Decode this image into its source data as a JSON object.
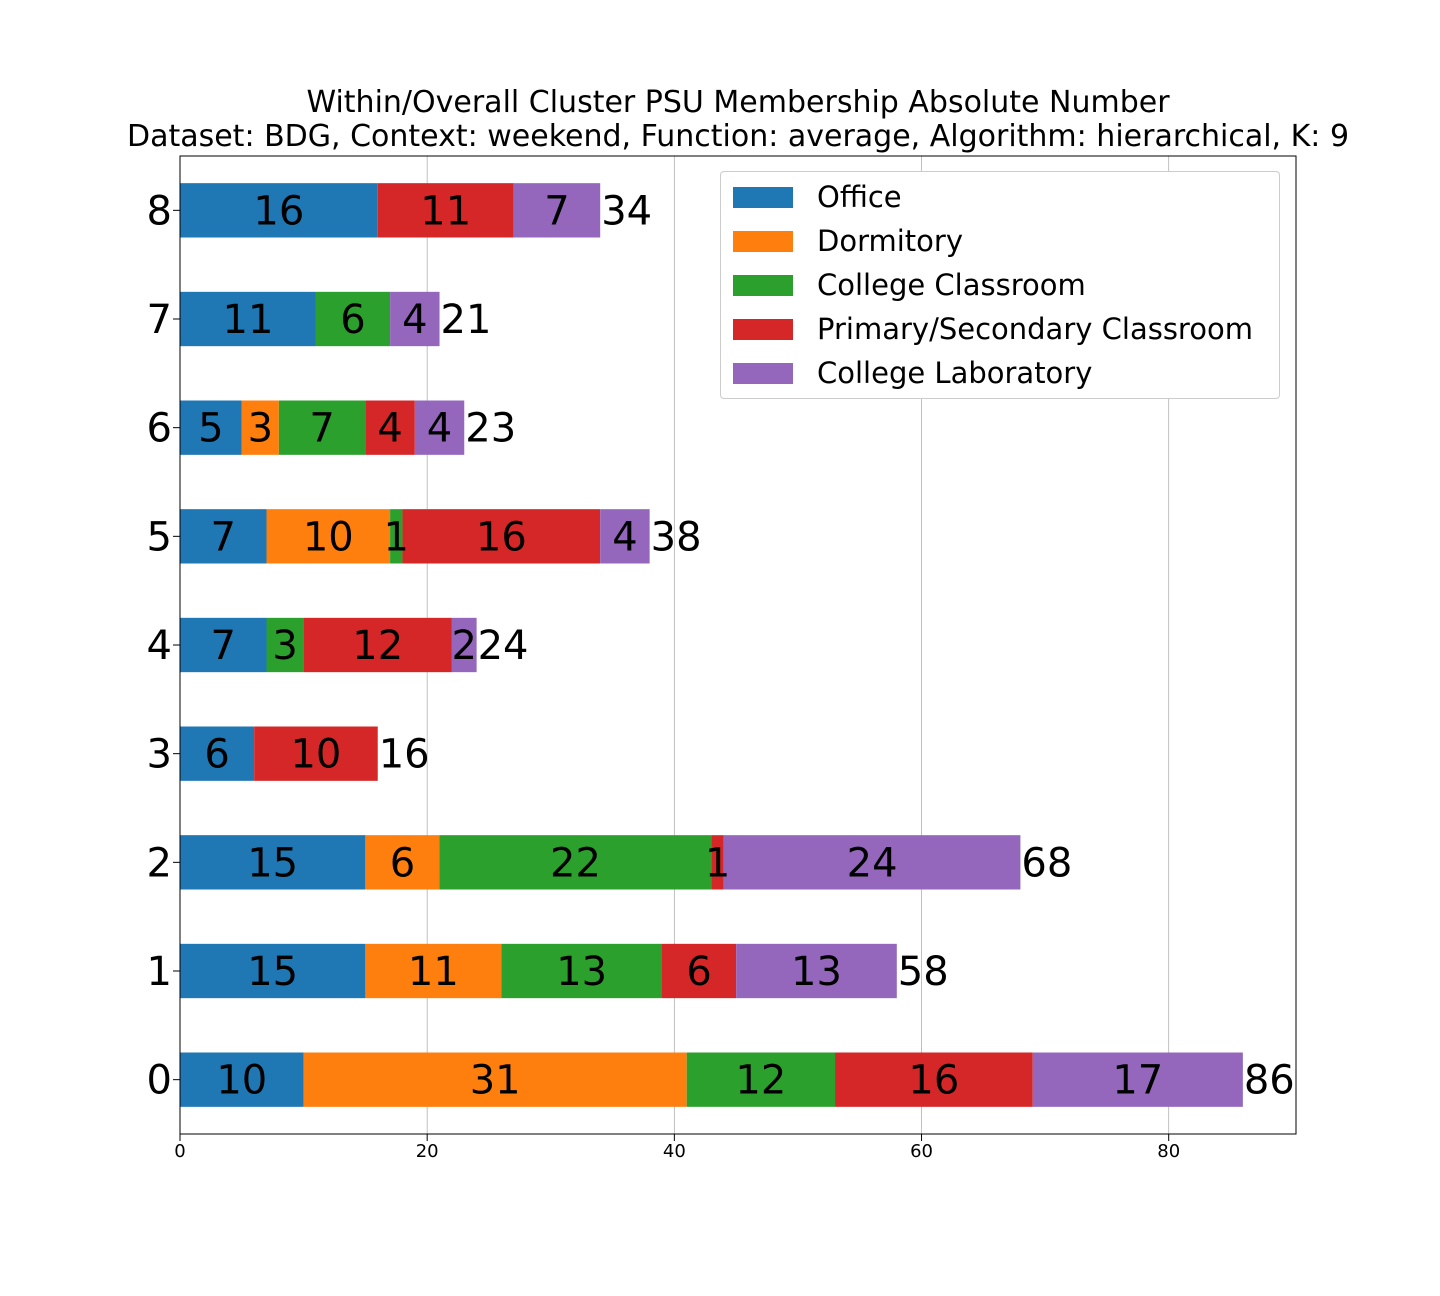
{
  "chart_data": {
    "type": "bar",
    "orientation": "horizontal",
    "stacked": true,
    "title": "Within/Overall Cluster PSU Membership Absolute Number",
    "subtitle": "Dataset: BDG, Context: weekend, Function: average, Algorithm: hierarchical, K: 9",
    "xlabel": "",
    "ylabel": "",
    "xlim": [
      0,
      90.3
    ],
    "xticks": [
      "0",
      "20",
      "40",
      "60",
      "80"
    ],
    "grid": "x",
    "legend_placement": "top-right",
    "categories": [
      "0",
      "1",
      "2",
      "3",
      "4",
      "5",
      "6",
      "7",
      "8"
    ],
    "series": [
      {
        "name": "Office",
        "color": "#1f77b4",
        "values": [
          10,
          15,
          15,
          6,
          7,
          7,
          5,
          11,
          16
        ]
      },
      {
        "name": "Dormitory",
        "color": "#ff7f0e",
        "values": [
          31,
          11,
          6,
          0,
          0,
          10,
          3,
          0,
          0
        ]
      },
      {
        "name": "College Classroom",
        "color": "#2ca02c",
        "values": [
          12,
          13,
          22,
          0,
          3,
          1,
          7,
          6,
          0
        ]
      },
      {
        "name": "Primary/Secondary Classroom",
        "color": "#d62728",
        "values": [
          16,
          6,
          1,
          10,
          12,
          16,
          4,
          0,
          11
        ]
      },
      {
        "name": "College Laboratory",
        "color": "#9467bd",
        "values": [
          17,
          13,
          24,
          0,
          2,
          4,
          4,
          4,
          7
        ]
      }
    ],
    "totals": [
      86,
      58,
      68,
      16,
      24,
      38,
      23,
      21,
      34
    ]
  }
}
